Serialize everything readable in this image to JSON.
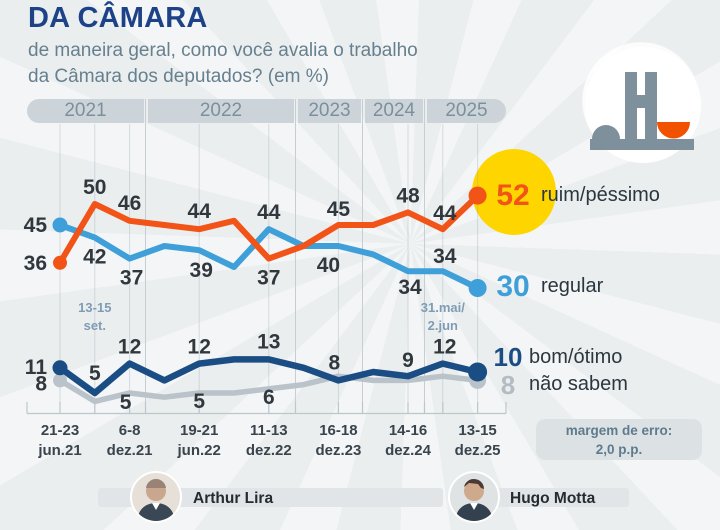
{
  "header": {
    "title": "DA CÂMARA",
    "subtitle_line1": "de maneira geral, como você avalia o trabalho",
    "subtitle_line2": "da Câmara dos deputados? (em %)"
  },
  "year_bands": [
    "2021",
    "2022",
    "2023",
    "2024",
    "2025"
  ],
  "axis": {
    "tick_labels": [
      {
        "line1": "21-23",
        "line2": "jun.21",
        "point_index": 0
      },
      {
        "line1": "6-8",
        "line2": "dez.21",
        "point_index": 2
      },
      {
        "line1": "19-21",
        "line2": "jun.22",
        "point_index": 4
      },
      {
        "line1": "11-13",
        "line2": "dez.22",
        "point_index": 6
      },
      {
        "line1": "16-18",
        "line2": "dez.23",
        "point_index": 8
      },
      {
        "line1": "14-16",
        "line2": "dez.24",
        "point_index": 10
      },
      {
        "line1": "13-15",
        "line2": "dez.25",
        "point_index": 12
      }
    ]
  },
  "annotations": [
    {
      "line1": "13-15",
      "line2": "set.",
      "point_index": 1
    },
    {
      "line1": "31.mai/",
      "line2": "2.jun",
      "point_index": 11
    }
  ],
  "legend": [
    {
      "value": "52",
      "label": "ruim/péssimo",
      "color": "#f25317"
    },
    {
      "value": "30",
      "label": "regular",
      "color": "#3f9fd9"
    },
    {
      "value": "10",
      "label": "bom/ótimo",
      "color": "#1a4d84"
    },
    {
      "value": "8",
      "label": "não sabem",
      "color": "#b2bcc2"
    }
  ],
  "note": {
    "line1": "margem de erro:",
    "line2": "2,0 p.p."
  },
  "people": [
    {
      "name": "Arthur Lira"
    },
    {
      "name": "Hugo Motta"
    }
  ],
  "colors": {
    "ruim": "#f25317",
    "regular": "#3f9fd9",
    "bom": "#1a4d84",
    "nao_sabem": "#b9c3c9",
    "highlight_circle": "#ffd500",
    "value_label": "#31383d",
    "grid": "#97a7b1",
    "ruler": "#bcc7cc",
    "title": "#1d4287",
    "logo_gray": "#7d909c",
    "logo_orange": "#f25200"
  },
  "chart_data": {
    "type": "line",
    "title": "DA CÂMARA — de maneira geral, como você avalia o trabalho da Câmara dos deputados? (em %)",
    "categories": [
      "21-23 jun.21",
      "13-15 set.21",
      "6-8 dez.21",
      "",
      "19-21 jun.22",
      "",
      "11-13 dez.22",
      "",
      "16-18 dez.23",
      "",
      "14-16 dez.24",
      "31.mai/2.jun.25",
      "13-15 dez.25"
    ],
    "series": [
      {
        "name": "ruim/péssimo",
        "color": "#f25317",
        "values": [
          36,
          50,
          46,
          45,
          44,
          46,
          37,
          40,
          45,
          45,
          48,
          44,
          52
        ],
        "point_labels": [
          36,
          50,
          46,
          null,
          44,
          null,
          37,
          null,
          45,
          null,
          48,
          44,
          52
        ]
      },
      {
        "name": "regular",
        "color": "#3f9fd9",
        "values": [
          45,
          42,
          37,
          40,
          39,
          35,
          44,
          40,
          40,
          38,
          34,
          34,
          30
        ],
        "point_labels": [
          45,
          42,
          37,
          null,
          39,
          null,
          44,
          null,
          40,
          null,
          34,
          34,
          30
        ]
      },
      {
        "name": "bom/ótimo",
        "color": "#1a4d84",
        "values": [
          11,
          5,
          12,
          8,
          12,
          13,
          13,
          11,
          8,
          10,
          9,
          12,
          10
        ],
        "point_labels": [
          11,
          5,
          12,
          null,
          12,
          null,
          13,
          null,
          8,
          null,
          9,
          12,
          10
        ]
      },
      {
        "name": "não sabem",
        "color": "#b9c3c9",
        "values": [
          8,
          3,
          5,
          4,
          5,
          5,
          6,
          7,
          9,
          8,
          8,
          9,
          8
        ],
        "point_labels": [
          8,
          null,
          5,
          null,
          5,
          null,
          6,
          null,
          null,
          null,
          null,
          null,
          8
        ]
      }
    ],
    "ylim": [
      0,
      60
    ],
    "y_axis_shown": false,
    "grid": "vertical lines at labeled survey dates; year divider lines for 2021-2025",
    "legend_position": "right",
    "highlight": {
      "series": "ruim/péssimo",
      "point_index": 12,
      "style": "yellow-circle"
    },
    "annotations": [
      {
        "text": "13-15 set.",
        "point_index": 1
      },
      {
        "text": "31.mai/2.jun",
        "point_index": 11
      }
    ],
    "note": "margem de erro: 2,0 p.p."
  }
}
